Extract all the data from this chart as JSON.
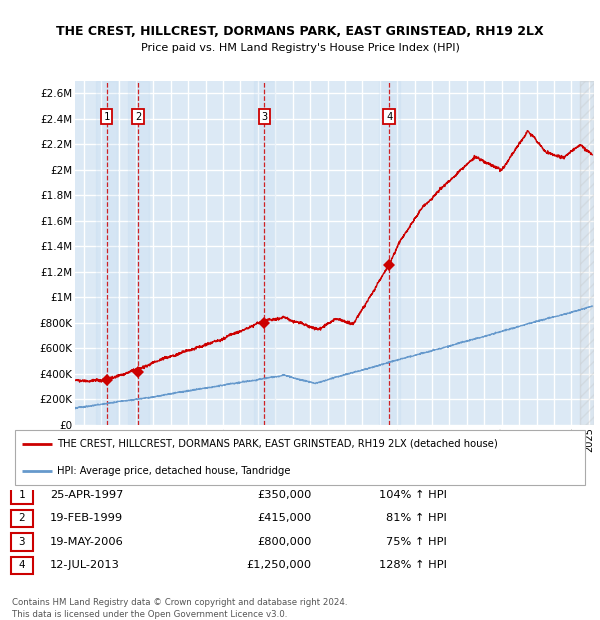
{
  "title": "THE CREST, HILLCREST, DORMANS PARK, EAST GRINSTEAD, RH19 2LX",
  "subtitle": "Price paid vs. HM Land Registry's House Price Index (HPI)",
  "xlim_start": 1995.5,
  "xlim_end": 2025.3,
  "ylim": [
    0,
    2700000
  ],
  "yticks": [
    0,
    200000,
    400000,
    600000,
    800000,
    1000000,
    1200000,
    1400000,
    1600000,
    1800000,
    2000000,
    2200000,
    2400000,
    2600000
  ],
  "ytick_labels": [
    "£0",
    "£200K",
    "£400K",
    "£600K",
    "£800K",
    "£1M",
    "£1.2M",
    "£1.4M",
    "£1.6M",
    "£1.8M",
    "£2M",
    "£2.2M",
    "£2.4M",
    "£2.6M"
  ],
  "sale_dates": [
    1997.32,
    1999.13,
    2006.38,
    2013.54
  ],
  "sale_prices": [
    350000,
    415000,
    800000,
    1250000
  ],
  "sale_labels": [
    "1",
    "2",
    "3",
    "4"
  ],
  "red_line_color": "#cc0000",
  "blue_line_color": "#6699cc",
  "background_color": "#dce9f5",
  "grid_color": "#ffffff",
  "table_rows": [
    [
      "1",
      "25-APR-1997",
      "£350,000",
      "104% ↑ HPI"
    ],
    [
      "2",
      "19-FEB-1999",
      "£415,000",
      "81% ↑ HPI"
    ],
    [
      "3",
      "19-MAY-2006",
      "£800,000",
      "75% ↑ HPI"
    ],
    [
      "4",
      "12-JUL-2013",
      "£1,250,000",
      "128% ↑ HPI"
    ]
  ],
  "footer": "Contains HM Land Registry data © Crown copyright and database right 2024.\nThis data is licensed under the Open Government Licence v3.0.",
  "legend_red": "THE CREST, HILLCREST, DORMANS PARK, EAST GRINSTEAD, RH19 2LX (detached house)",
  "legend_blue": "HPI: Average price, detached house, Tandridge"
}
